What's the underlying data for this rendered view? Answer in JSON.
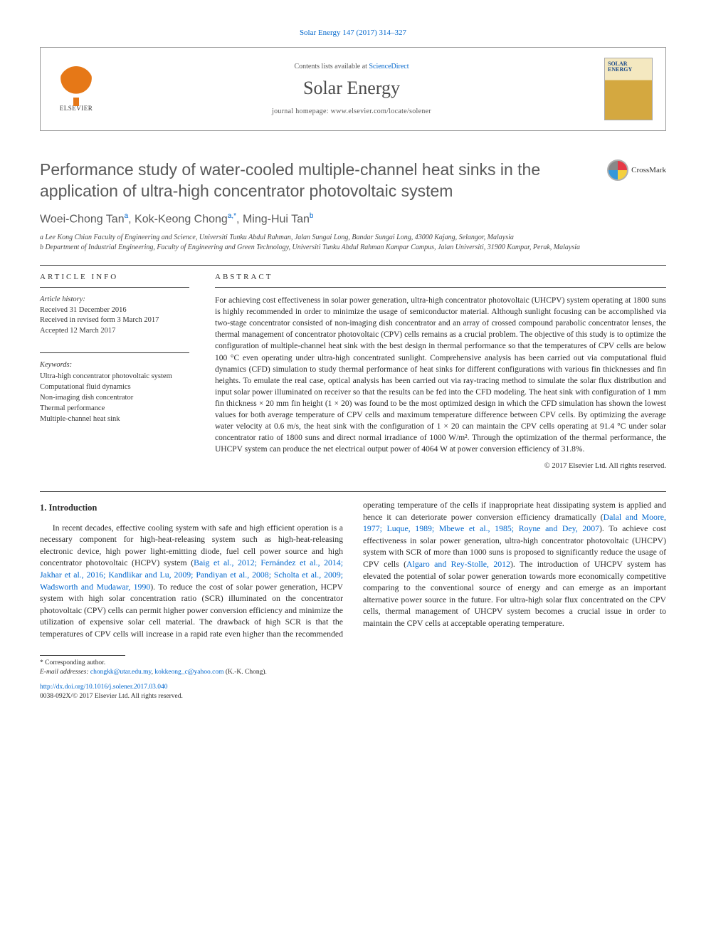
{
  "citation": "Solar Energy 147 (2017) 314–327",
  "header": {
    "contents_prefix": "Contents lists available at ",
    "sciencedirect": "ScienceDirect",
    "journal": "Solar Energy",
    "homepage_prefix": "journal homepage: ",
    "homepage_url": "www.elsevier.com/locate/solener",
    "publisher": "ELSEVIER",
    "cover_title": "SOLAR ENERGY"
  },
  "crossmark": "CrossMark",
  "title": "Performance study of water-cooled multiple-channel heat sinks in the application of ultra-high concentrator photovoltaic system",
  "authors_html": "Woei-Chong Tan<sup>a</sup>, Kok-Keong Chong<sup>a,*</sup>, Ming-Hui Tan<sup>b</sup>",
  "affiliations": {
    "a": "a Lee Kong Chian Faculty of Engineering and Science, Universiti Tunku Abdul Rahman, Jalan Sungai Long, Bandar Sungai Long, 43000 Kajang, Selangor, Malaysia",
    "b": "b Department of Industrial Engineering, Faculty of Engineering and Green Technology, Universiti Tunku Abdul Rahman Kampar Campus, Jalan Universiti, 31900 Kampar, Perak, Malaysia"
  },
  "section_labels": {
    "article_info": "ARTICLE INFO",
    "abstract": "ABSTRACT"
  },
  "article_info": {
    "history_label": "Article history:",
    "received": "Received 31 December 2016",
    "revised": "Received in revised form 3 March 2017",
    "accepted": "Accepted 12 March 2017",
    "keywords_label": "Keywords:",
    "keywords": [
      "Ultra-high concentrator photovoltaic system",
      "Computational fluid dynamics",
      "Non-imaging dish concentrator",
      "Thermal performance",
      "Multiple-channel heat sink"
    ]
  },
  "abstract": "For achieving cost effectiveness in solar power generation, ultra-high concentrator photovoltaic (UHCPV) system operating at 1800 suns is highly recommended in order to minimize the usage of semiconductor material. Although sunlight focusing can be accomplished via two-stage concentrator consisted of non-imaging dish concentrator and an array of crossed compound parabolic concentrator lenses, the thermal management of concentrator photovoltaic (CPV) cells remains as a crucial problem. The objective of this study is to optimize the configuration of multiple-channel heat sink with the best design in thermal performance so that the temperatures of CPV cells are below 100 °C even operating under ultra-high concentrated sunlight. Comprehensive analysis has been carried out via computational fluid dynamics (CFD) simulation to study thermal performance of heat sinks for different configurations with various fin thicknesses and fin heights. To emulate the real case, optical analysis has been carried out via ray-tracing method to simulate the solar flux distribution and input solar power illuminated on receiver so that the results can be fed into the CFD modeling. The heat sink with configuration of 1 mm fin thickness × 20 mm fin height (1 × 20) was found to be the most optimized design in which the CFD simulation has shown the lowest values for both average temperature of CPV cells and maximum temperature difference between CPV cells. By optimizing the average water velocity at 0.6 m/s, the heat sink with the configuration of 1 × 20 can maintain the CPV cells operating at 91.4 °C under solar concentrator ratio of 1800 suns and direct normal irradiance of 1000 W/m². Through the optimization of the thermal performance, the UHCPV system can produce the net electrical output power of 4064 W at power conversion efficiency of 31.8%.",
  "abstract_copyright": "© 2017 Elsevier Ltd. All rights reserved.",
  "intro": {
    "heading": "1. Introduction",
    "p1a": "In recent decades, effective cooling system with safe and high efficient operation is a necessary component for high-heat-releasing system such as high-heat-releasing electronic device, high power light-emitting diode, fuel cell power source and high concentrator photovoltaic (HCPV) system (",
    "p1_cite1": "Baig et al., 2012; Fernández et al., 2014; Jakhar et al., 2016; Kandlikar and Lu, 2009; Pandiyan et al., 2008; Scholta et al., 2009; Wadsworth and Mudawar, 1990",
    "p1b": "). To reduce the cost of solar power generation, HCPV system with high solar concentration ratio (SCR) illuminated on the concentrator photovoltaic (CPV) cells can permit higher power conversion efficiency and minimize the utilization of expensive solar cell material. The drawback of high SCR is that the tem",
    "p2a": "peratures of CPV cells will increase in a rapid rate even higher than the recommended operating temperature of the cells if inappropriate heat dissipating system is applied and hence it can deteriorate power conversion efficiency dramatically (",
    "p2_cite1": "Dalal and Moore, 1977; Luque, 1989; Mbewe et al., 1985; Royne and Dey, 2007",
    "p2b": "). To achieve cost effectiveness in solar power generation, ultra-high concentrator photovoltaic (UHCPV) system with SCR of more than 1000 suns is proposed to significantly reduce the usage of CPV cells (",
    "p2_cite2": "Algaro and Rey-Stolle, 2012",
    "p2c": "). The introduction of UHCPV system has elevated the potential of solar power generation towards more economically competitive comparing to the conventional source of energy and can emerge as an important alternative power source in the future. For ultra-high solar flux concentrated on the CPV cells, thermal management of UHCPV system becomes a crucial issue in order to maintain the CPV cells at acceptable operating temperature."
  },
  "footnote": {
    "corr": "* Corresponding author.",
    "email_label": "E-mail addresses: ",
    "email1": "chongkk@utar.edu.my",
    "email_sep": ", ",
    "email2": "kokkeong_c@yahoo.com",
    "email_who": " (K.-K. Chong)."
  },
  "footer": {
    "doi": "http://dx.doi.org/10.1016/j.solener.2017.03.040",
    "issn": "0038-092X/© 2017 Elsevier Ltd. All rights reserved."
  },
  "colors": {
    "link": "#0066cc",
    "text": "#2a2a2a",
    "heading_gray": "#5a5a5a",
    "elsevier_orange": "#e67817"
  }
}
